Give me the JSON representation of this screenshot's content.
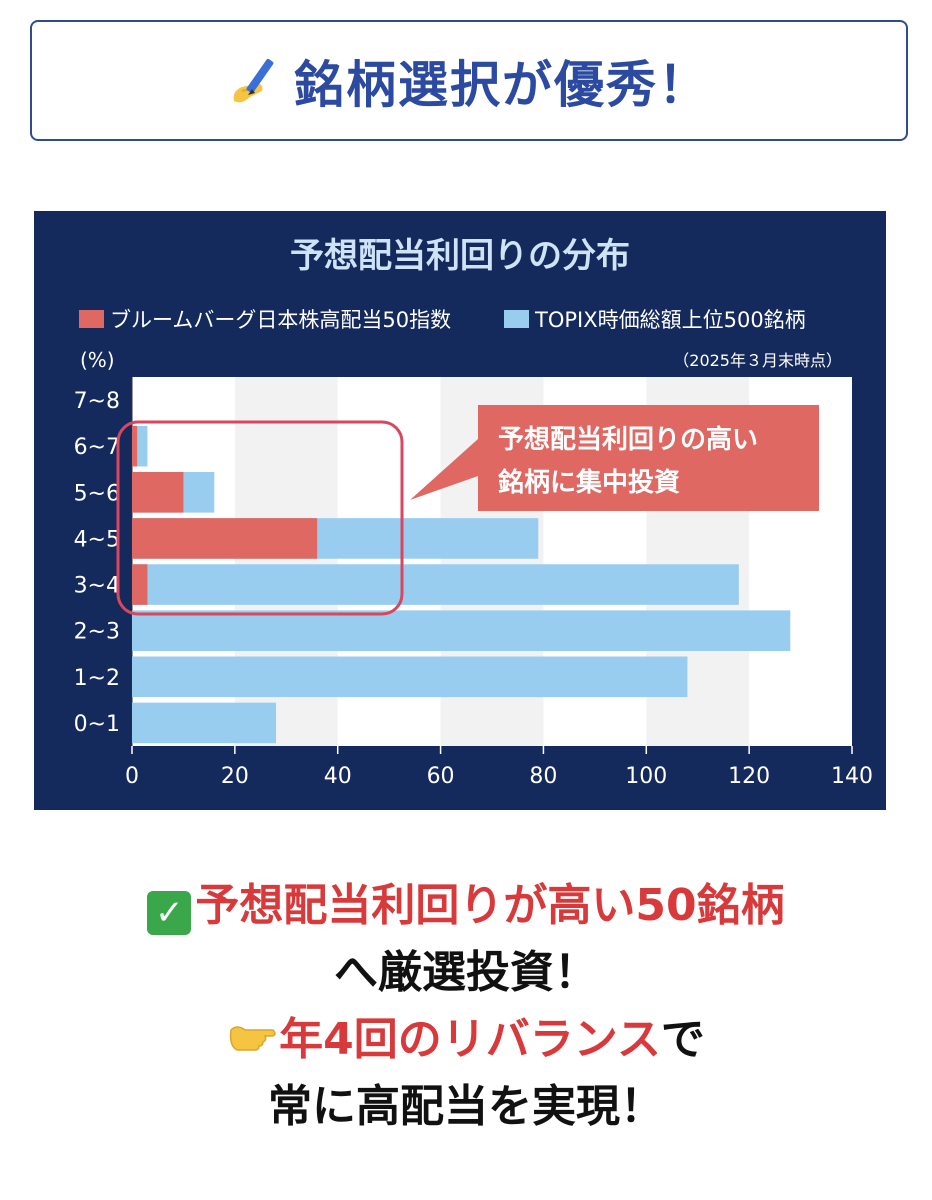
{
  "header": {
    "title": "銘柄選択が優秀！",
    "icon": "writing-hand-icon"
  },
  "chart_data": {
    "type": "bar",
    "orientation": "horizontal",
    "title": "予想配当利回りの分布",
    "note": "（2025年３月末時点）",
    "ylabel": "(%)",
    "categories": [
      "0~1",
      "1~2",
      "2~3",
      "3~4",
      "4~5",
      "5~6",
      "6~7",
      "7~8"
    ],
    "series": [
      {
        "name": "ブルームバーグ日本株高配当50指数",
        "color": "#df6863",
        "values": [
          0,
          0,
          0,
          3,
          36,
          10,
          1,
          0
        ]
      },
      {
        "name": "TOPIX時価総額上位500銘柄",
        "color": "#99cdf0",
        "values": [
          28,
          108,
          128,
          118,
          79,
          16,
          3,
          0
        ]
      }
    ],
    "xlim": [
      0,
      140
    ],
    "xticks": [
      0,
      20,
      40,
      60,
      80,
      100,
      120,
      140
    ],
    "callout": {
      "line1": "予想配当利回りの高い",
      "line2": "銘柄に集中投資"
    },
    "colors": {
      "background": "#142a5c",
      "plot_bg": "#ffffff",
      "band": "#f2f2f2",
      "highlight": "#d9475f"
    }
  },
  "bottom": {
    "line1_red": "予想配当利回りが高い50銘柄",
    "line2": "へ厳選投資！",
    "line3_red": "年4回のリバランス",
    "line3_black": "で",
    "line4": "常に高配当を実現！",
    "check_icon": "check-mark-icon",
    "finger_icon": "pointing-finger-icon"
  }
}
